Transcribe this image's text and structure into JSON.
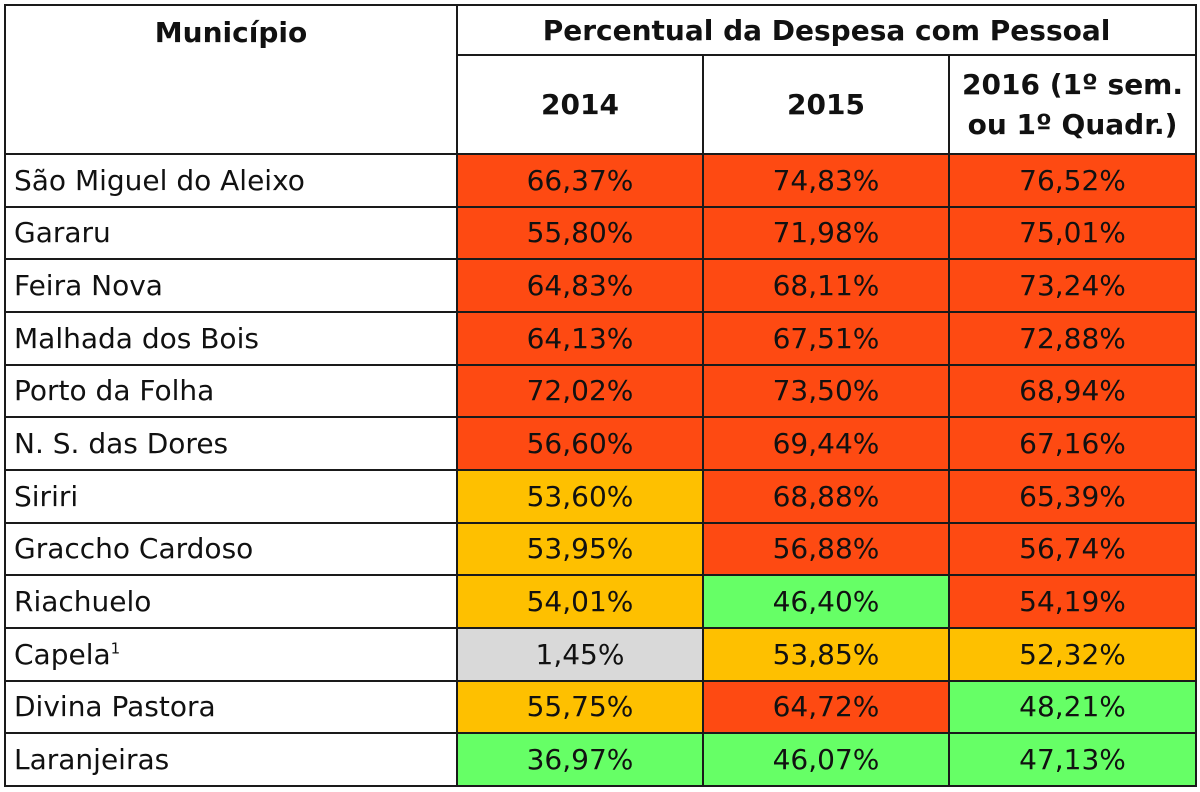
{
  "header": {
    "municipio": "Município",
    "group_title": "Percentual da Despesa com Pessoal",
    "year_2014": "2014",
    "year_2015": "2015",
    "year_2016_line1": "2016 (1º sem.",
    "year_2016_line2": "ou 1º Quadr.)"
  },
  "colors": {
    "red": "#fe4a12",
    "orange": "#fec000",
    "green": "#66ff66",
    "grey": "#d9d9d9"
  },
  "rows": [
    {
      "name": "São Miguel do Aleixo",
      "sup": "",
      "v2014": "66,37%",
      "c2014": "red",
      "v2015": "74,83%",
      "c2015": "red",
      "v2016": "76,52%",
      "c2016": "red"
    },
    {
      "name": "Gararu",
      "sup": "",
      "v2014": "55,80%",
      "c2014": "red",
      "v2015": "71,98%",
      "c2015": "red",
      "v2016": "75,01%",
      "c2016": "red"
    },
    {
      "name": "Feira Nova",
      "sup": "",
      "v2014": "64,83%",
      "c2014": "red",
      "v2015": "68,11%",
      "c2015": "red",
      "v2016": "73,24%",
      "c2016": "red"
    },
    {
      "name": "Malhada dos Bois",
      "sup": "",
      "v2014": "64,13%",
      "c2014": "red",
      "v2015": "67,51%",
      "c2015": "red",
      "v2016": "72,88%",
      "c2016": "red"
    },
    {
      "name": "Porto da Folha",
      "sup": "",
      "v2014": "72,02%",
      "c2014": "red",
      "v2015": "73,50%",
      "c2015": "red",
      "v2016": "68,94%",
      "c2016": "red"
    },
    {
      "name": "N. S. das Dores",
      "sup": "",
      "v2014": "56,60%",
      "c2014": "red",
      "v2015": "69,44%",
      "c2015": "red",
      "v2016": "67,16%",
      "c2016": "red"
    },
    {
      "name": "Siriri",
      "sup": "",
      "v2014": "53,60%",
      "c2014": "orange",
      "v2015": "68,88%",
      "c2015": "red",
      "v2016": "65,39%",
      "c2016": "red"
    },
    {
      "name": "Graccho Cardoso",
      "sup": "",
      "v2014": "53,95%",
      "c2014": "orange",
      "v2015": "56,88%",
      "c2015": "red",
      "v2016": "56,74%",
      "c2016": "red"
    },
    {
      "name": "Riachuelo",
      "sup": "",
      "v2014": "54,01%",
      "c2014": "orange",
      "v2015": "46,40%",
      "c2015": "green",
      "v2016": "54,19%",
      "c2016": "red"
    },
    {
      "name": "Capela",
      "sup": "1",
      "v2014": "1,45%",
      "c2014": "grey",
      "v2015": "53,85%",
      "c2015": "orange",
      "v2016": "52,32%",
      "c2016": "orange"
    },
    {
      "name": "Divina Pastora",
      "sup": "",
      "v2014": "55,75%",
      "c2014": "orange",
      "v2015": "64,72%",
      "c2015": "red",
      "v2016": "48,21%",
      "c2016": "green"
    },
    {
      "name": "Laranjeiras",
      "sup": "",
      "v2014": "36,97%",
      "c2014": "green",
      "v2015": "46,07%",
      "c2015": "green",
      "v2016": "47,13%",
      "c2016": "green"
    }
  ]
}
